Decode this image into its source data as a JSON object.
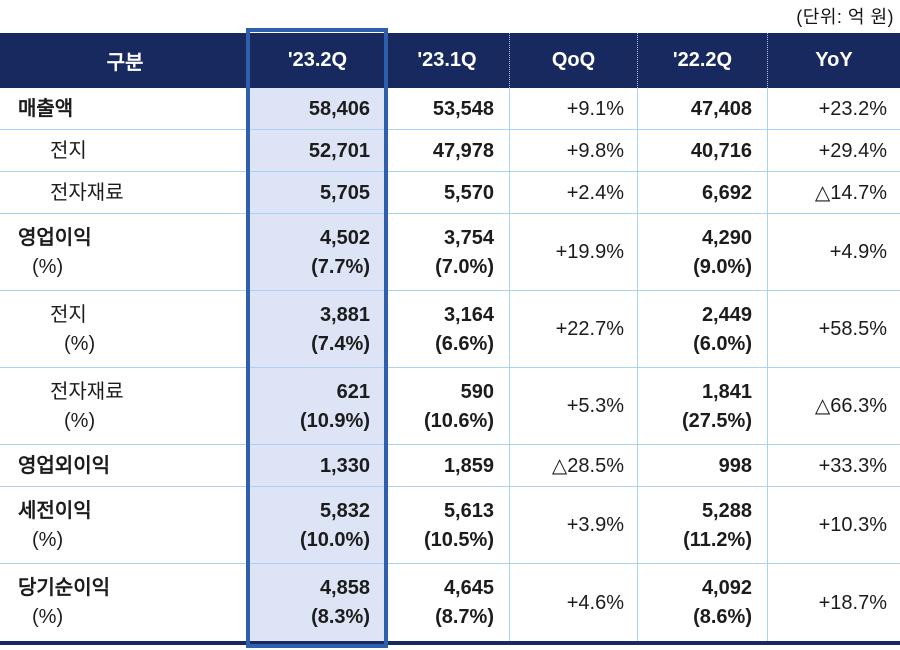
{
  "unit_label": "(단위: 억 원)",
  "colors": {
    "header_bg": "#17295F",
    "highlight_border": "#2E5FAC",
    "highlight_fill": "#DCE4F5",
    "separator": "#A9D3F1",
    "text": "#1c1c1c"
  },
  "table": {
    "columns": [
      "구분",
      "'23.2Q",
      "'23.1Q",
      "QoQ",
      "'22.2Q",
      "YoY"
    ],
    "rows": [
      {
        "label": "매출액",
        "label_pct": "",
        "indent": 0,
        "bold_label": true,
        "double": false,
        "q23_2": "58,406",
        "q23_2_pct": "",
        "q23_1": "53,548",
        "q23_1_pct": "",
        "qoq": "+9.1%",
        "q22_2": "47,408",
        "q22_2_pct": "",
        "yoy": "+23.2%"
      },
      {
        "label": "전지",
        "label_pct": "",
        "indent": 1,
        "bold_label": false,
        "double": false,
        "q23_2": "52,701",
        "q23_2_pct": "",
        "q23_1": "47,978",
        "q23_1_pct": "",
        "qoq": "+9.8%",
        "q22_2": "40,716",
        "q22_2_pct": "",
        "yoy": "+29.4%"
      },
      {
        "label": "전자재료",
        "label_pct": "",
        "indent": 1,
        "bold_label": false,
        "double": false,
        "q23_2": "5,705",
        "q23_2_pct": "",
        "q23_1": "5,570",
        "q23_1_pct": "",
        "qoq": "+2.4%",
        "q22_2": "6,692",
        "q22_2_pct": "",
        "yoy": "△14.7%"
      },
      {
        "label": "영업이익",
        "label_pct": "(%)",
        "indent": 0,
        "bold_label": true,
        "double": true,
        "q23_2": "4,502",
        "q23_2_pct": "(7.7%)",
        "q23_1": "3,754",
        "q23_1_pct": "(7.0%)",
        "qoq": "+19.9%",
        "q22_2": "4,290",
        "q22_2_pct": "(9.0%)",
        "yoy": "+4.9%"
      },
      {
        "label": "전지",
        "label_pct": "(%)",
        "indent": 1,
        "bold_label": false,
        "double": true,
        "q23_2": "3,881",
        "q23_2_pct": "(7.4%)",
        "q23_1": "3,164",
        "q23_1_pct": "(6.6%)",
        "qoq": "+22.7%",
        "q22_2": "2,449",
        "q22_2_pct": "(6.0%)",
        "yoy": "+58.5%"
      },
      {
        "label": "전자재료",
        "label_pct": "(%)",
        "indent": 1,
        "bold_label": false,
        "double": true,
        "q23_2": "621",
        "q23_2_pct": "(10.9%)",
        "q23_1": "590",
        "q23_1_pct": "(10.6%)",
        "qoq": "+5.3%",
        "q22_2": "1,841",
        "q22_2_pct": "(27.5%)",
        "yoy": "△66.3%"
      },
      {
        "label": "영업외이익",
        "label_pct": "",
        "indent": 0,
        "bold_label": true,
        "double": false,
        "q23_2": "1,330",
        "q23_2_pct": "",
        "q23_1": "1,859",
        "q23_1_pct": "",
        "qoq": "△28.5%",
        "q22_2": "998",
        "q22_2_pct": "",
        "yoy": "+33.3%"
      },
      {
        "label": "세전이익",
        "label_pct": "(%)",
        "indent": 0,
        "bold_label": true,
        "double": true,
        "q23_2": "5,832",
        "q23_2_pct": "(10.0%)",
        "q23_1": "5,613",
        "q23_1_pct": "(10.5%)",
        "qoq": "+3.9%",
        "q22_2": "5,288",
        "q22_2_pct": "(11.2%)",
        "yoy": "+10.3%"
      },
      {
        "label": "당기순이익",
        "label_pct": "(%)",
        "indent": 0,
        "bold_label": true,
        "double": true,
        "q23_2": "4,858",
        "q23_2_pct": "(8.3%)",
        "q23_1": "4,645",
        "q23_1_pct": "(8.7%)",
        "qoq": "+4.6%",
        "q22_2": "4,092",
        "q22_2_pct": "(8.6%)",
        "yoy": "+18.7%"
      }
    ]
  }
}
